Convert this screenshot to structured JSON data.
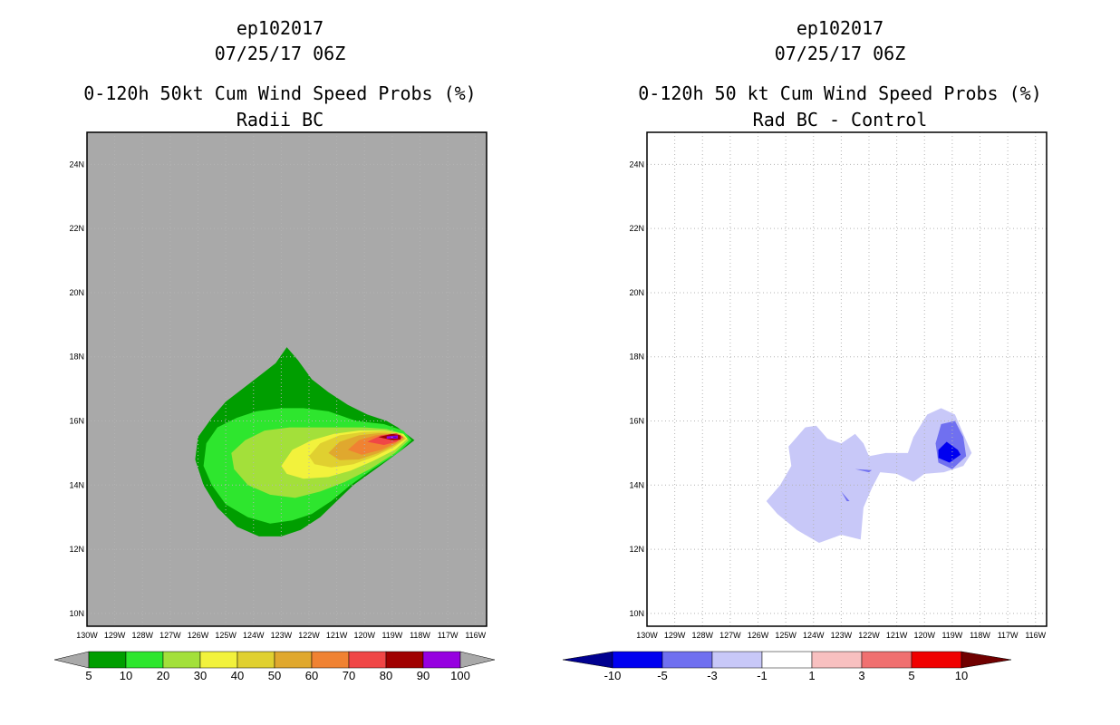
{
  "panels": [
    {
      "id": "left",
      "title_lines": [
        "ep102017",
        "07/25/17 06Z",
        "0-120h 50kt Cum Wind Speed Probs (%)",
        "Radii BC"
      ],
      "colors": {
        "background": "#a9a9a9"
      },
      "colorbar": {
        "bins": [
          {
            "from": 5,
            "to": 10,
            "color": "#009e00"
          },
          {
            "from": 10,
            "to": 20,
            "color": "#2ee62e"
          },
          {
            "from": 20,
            "to": 30,
            "color": "#a3e03a"
          },
          {
            "from": 30,
            "to": 40,
            "color": "#f2f23c"
          },
          {
            "from": 40,
            "to": 50,
            "color": "#e0d030"
          },
          {
            "from": 50,
            "to": 60,
            "color": "#e0a82e"
          },
          {
            "from": 60,
            "to": 70,
            "color": "#f08232"
          },
          {
            "from": 70,
            "to": 80,
            "color": "#f04646"
          },
          {
            "from": 80,
            "to": 90,
            "color": "#a00000"
          },
          {
            "from": 90,
            "to": 100,
            "color": "#9600e0"
          }
        ],
        "under_color": "#a9a9a9",
        "over_color": "#a9a9a9",
        "labels": [
          "5",
          "10",
          "20",
          "30",
          "40",
          "50",
          "60",
          "70",
          "80",
          "90",
          "100"
        ]
      }
    },
    {
      "id": "right",
      "title_lines": [
        "ep102017",
        "07/25/17 06Z",
        "0-120h 50 kt Cum Wind Speed Probs (%)",
        "Rad BC - Control"
      ],
      "colors": {
        "background": "#ffffff"
      },
      "colorbar": {
        "bins": [
          {
            "from": -10,
            "to": -5,
            "color": "#0000f0"
          },
          {
            "from": -5,
            "to": -3,
            "color": "#7070f0"
          },
          {
            "from": -3,
            "to": -1,
            "color": "#c8c8f8"
          },
          {
            "from": -1,
            "to": 1,
            "color": "#ffffff"
          },
          {
            "from": 1,
            "to": 3,
            "color": "#f8c0c0"
          },
          {
            "from": 3,
            "to": 5,
            "color": "#f07070"
          },
          {
            "from": 5,
            "to": 10,
            "color": "#f00000"
          }
        ],
        "under_color": "#000090",
        "over_color": "#700000",
        "labels": [
          "-10",
          "-5",
          "-3",
          "-1",
          "1",
          "3",
          "5",
          "10"
        ]
      }
    }
  ],
  "chart_data": [
    {
      "type": "heatmap",
      "title": "0-120h 50kt Cum Wind Speed Probs (%) Radii BC",
      "storm": "ep102017",
      "valid_time": "07/25/17 06Z",
      "units": "%",
      "x_range_lon": [
        -130.0,
        -115.6
      ],
      "y_range_lat": [
        9.6,
        25.0
      ],
      "x_tick_labels": [
        "130W",
        "129W",
        "128W",
        "127W",
        "126W",
        "125W",
        "124W",
        "123W",
        "122W",
        "121W",
        "120W",
        "119W",
        "118W",
        "117W",
        "116W"
      ],
      "y_tick_labels": [
        "10N",
        "12N",
        "14N",
        "16N",
        "18N",
        "20N",
        "22N",
        "24N"
      ],
      "grid": true,
      "contours": [
        {
          "level": 5,
          "color": "#009e00",
          "points": [
            [
              -122.8,
              18.3
            ],
            [
              -122.4,
              17.9
            ],
            [
              -121.9,
              17.3
            ],
            [
              -121.3,
              16.9
            ],
            [
              -120.6,
              16.5
            ],
            [
              -119.9,
              16.2
            ],
            [
              -119.2,
              16.0
            ],
            [
              -118.8,
              15.8
            ],
            [
              -118.2,
              15.4
            ],
            [
              -118.8,
              15.0
            ],
            [
              -119.6,
              14.5
            ],
            [
              -120.4,
              14.0
            ],
            [
              -121.0,
              13.5
            ],
            [
              -121.6,
              13.0
            ],
            [
              -122.3,
              12.6
            ],
            [
              -123.0,
              12.4
            ],
            [
              -123.8,
              12.4
            ],
            [
              -124.6,
              12.7
            ],
            [
              -125.3,
              13.3
            ],
            [
              -125.8,
              14.0
            ],
            [
              -126.1,
              14.8
            ],
            [
              -126.0,
              15.5
            ],
            [
              -125.5,
              16.1
            ],
            [
              -125.0,
              16.6
            ],
            [
              -124.4,
              17.0
            ],
            [
              -123.8,
              17.4
            ],
            [
              -123.2,
              17.8
            ]
          ]
        },
        {
          "level": 10,
          "color": "#2ee62e",
          "points": [
            [
              -125.7,
              15.3
            ],
            [
              -125.3,
              15.8
            ],
            [
              -124.6,
              16.1
            ],
            [
              -123.9,
              16.3
            ],
            [
              -123.0,
              16.4
            ],
            [
              -122.2,
              16.4
            ],
            [
              -121.3,
              16.3
            ],
            [
              -120.3,
              16.0
            ],
            [
              -119.3,
              15.9
            ],
            [
              -118.6,
              15.7
            ],
            [
              -118.3,
              15.4
            ],
            [
              -118.8,
              15.0
            ],
            [
              -119.7,
              14.5
            ],
            [
              -120.5,
              14.0
            ],
            [
              -121.2,
              13.5
            ],
            [
              -121.9,
              13.1
            ],
            [
              -122.6,
              12.9
            ],
            [
              -123.4,
              12.8
            ],
            [
              -124.2,
              13.0
            ],
            [
              -125.0,
              13.4
            ],
            [
              -125.5,
              14.0
            ],
            [
              -125.8,
              14.6
            ]
          ]
        },
        {
          "level": 20,
          "color": "#a3e03a",
          "points": [
            [
              -124.8,
              15.0
            ],
            [
              -124.3,
              15.4
            ],
            [
              -123.6,
              15.7
            ],
            [
              -122.7,
              15.8
            ],
            [
              -121.8,
              15.8
            ],
            [
              -120.9,
              15.8
            ],
            [
              -120.0,
              15.8
            ],
            [
              -119.2,
              15.75
            ],
            [
              -118.6,
              15.6
            ],
            [
              -118.4,
              15.4
            ],
            [
              -118.9,
              15.0
            ],
            [
              -119.8,
              14.5
            ],
            [
              -120.7,
              14.1
            ],
            [
              -121.6,
              13.8
            ],
            [
              -122.5,
              13.6
            ],
            [
              -123.4,
              13.7
            ],
            [
              -124.2,
              14.0
            ],
            [
              -124.7,
              14.5
            ]
          ]
        },
        {
          "level": 30,
          "color": "#f2f23c",
          "points": [
            [
              -123.0,
              14.6
            ],
            [
              -122.6,
              15.1
            ],
            [
              -121.9,
              15.4
            ],
            [
              -121.1,
              15.6
            ],
            [
              -120.2,
              15.7
            ],
            [
              -119.3,
              15.7
            ],
            [
              -118.6,
              15.6
            ],
            [
              -118.45,
              15.45
            ],
            [
              -118.9,
              15.1
            ],
            [
              -119.7,
              14.75
            ],
            [
              -120.5,
              14.45
            ],
            [
              -121.3,
              14.25
            ],
            [
              -122.2,
              14.2
            ],
            [
              -122.8,
              14.35
            ]
          ]
        },
        {
          "level": 40,
          "color": "#e0d030",
          "points": [
            [
              -122.0,
              14.9
            ],
            [
              -121.6,
              15.3
            ],
            [
              -120.9,
              15.55
            ],
            [
              -120.1,
              15.65
            ],
            [
              -119.3,
              15.68
            ],
            [
              -118.7,
              15.6
            ],
            [
              -118.5,
              15.45
            ],
            [
              -118.9,
              15.2
            ],
            [
              -119.6,
              14.9
            ],
            [
              -120.4,
              14.65
            ],
            [
              -121.2,
              14.55
            ],
            [
              -121.8,
              14.65
            ]
          ]
        },
        {
          "level": 50,
          "color": "#e0a82e",
          "points": [
            [
              -121.3,
              15.0
            ],
            [
              -120.9,
              15.35
            ],
            [
              -120.2,
              15.55
            ],
            [
              -119.5,
              15.62
            ],
            [
              -118.8,
              15.6
            ],
            [
              -118.55,
              15.45
            ],
            [
              -118.9,
              15.25
            ],
            [
              -119.5,
              15.0
            ],
            [
              -120.2,
              14.8
            ],
            [
              -120.9,
              14.78
            ]
          ]
        },
        {
          "level": 60,
          "color": "#f08232",
          "points": [
            [
              -120.6,
              15.1
            ],
            [
              -120.2,
              15.4
            ],
            [
              -119.6,
              15.55
            ],
            [
              -119.0,
              15.6
            ],
            [
              -118.6,
              15.5
            ],
            [
              -118.9,
              15.3
            ],
            [
              -119.4,
              15.1
            ],
            [
              -120.1,
              14.95
            ]
          ]
        },
        {
          "level": 70,
          "color": "#f04646",
          "points": [
            [
              -119.9,
              15.35
            ],
            [
              -119.4,
              15.55
            ],
            [
              -118.85,
              15.62
            ],
            [
              -118.6,
              15.5
            ],
            [
              -118.85,
              15.35
            ],
            [
              -119.3,
              15.25
            ]
          ]
        },
        {
          "level": 80,
          "color": "#a00000",
          "points": [
            [
              -119.5,
              15.5
            ],
            [
              -119.0,
              15.6
            ],
            [
              -118.7,
              15.55
            ],
            [
              -118.7,
              15.42
            ],
            [
              -119.0,
              15.4
            ]
          ]
        },
        {
          "level": 90,
          "color": "#9600e0",
          "points": [
            [
              -119.2,
              15.52
            ],
            [
              -118.8,
              15.55
            ],
            [
              -118.8,
              15.45
            ],
            [
              -119.2,
              15.45
            ]
          ]
        },
        {
          "level": 100,
          "color": "#5000c8",
          "points": [
            [
              -119.0,
              15.51
            ],
            [
              -118.85,
              15.51
            ],
            [
              -118.85,
              15.48
            ],
            [
              -119.0,
              15.48
            ]
          ]
        }
      ]
    },
    {
      "type": "heatmap",
      "title": "0-120h 50 kt Cum Wind Speed Probs (%) Rad BC - Control",
      "storm": "ep102017",
      "valid_time": "07/25/17 06Z",
      "units": "%",
      "x_range_lon": [
        -130.0,
        -115.6
      ],
      "y_range_lat": [
        9.6,
        25.0
      ],
      "x_tick_labels": [
        "130W",
        "129W",
        "128W",
        "127W",
        "126W",
        "125W",
        "124W",
        "123W",
        "122W",
        "121W",
        "120W",
        "119W",
        "118W",
        "117W",
        "116W"
      ],
      "y_tick_labels": [
        "10N",
        "12N",
        "14N",
        "16N",
        "18N",
        "20N",
        "22N",
        "24N"
      ],
      "grid": true,
      "contours": [
        {
          "level": -1,
          "color": "#c8c8f8",
          "points": [
            [
              -124.3,
              15.8
            ],
            [
              -123.9,
              15.85
            ],
            [
              -123.5,
              15.45
            ],
            [
              -123.0,
              15.3
            ],
            [
              -122.5,
              15.6
            ],
            [
              -122.2,
              15.3
            ],
            [
              -122.0,
              14.9
            ],
            [
              -121.4,
              15.0
            ],
            [
              -120.6,
              15.0
            ],
            [
              -120.4,
              15.5
            ],
            [
              -119.9,
              16.2
            ],
            [
              -119.4,
              16.4
            ],
            [
              -118.9,
              16.2
            ],
            [
              -118.6,
              15.6
            ],
            [
              -118.3,
              15.0
            ],
            [
              -118.6,
              14.6
            ],
            [
              -119.3,
              14.4
            ],
            [
              -120.0,
              14.35
            ],
            [
              -120.4,
              14.1
            ],
            [
              -121.0,
              14.35
            ],
            [
              -121.6,
              14.4
            ],
            [
              -121.9,
              13.9
            ],
            [
              -122.2,
              13.3
            ],
            [
              -122.3,
              12.3
            ],
            [
              -123.0,
              12.45
            ],
            [
              -123.8,
              12.2
            ],
            [
              -124.6,
              12.6
            ],
            [
              -125.3,
              13.1
            ],
            [
              -125.7,
              13.5
            ],
            [
              -125.2,
              14.0
            ],
            [
              -124.8,
              14.6
            ],
            [
              -124.9,
              15.2
            ]
          ]
        },
        {
          "level": -3,
          "color": "#7070f0",
          "points": [
            [
              -119.6,
              15.3
            ],
            [
              -119.4,
              15.9
            ],
            [
              -118.9,
              16.0
            ],
            [
              -118.6,
              15.5
            ],
            [
              -118.5,
              14.9
            ],
            [
              -119.0,
              14.5
            ],
            [
              -119.5,
              14.7
            ]
          ]
        },
        {
          "level": -3,
          "color": "#7070f0",
          "points": [
            [
              -123.0,
              13.8
            ],
            [
              -122.8,
              13.5
            ],
            [
              -122.7,
              13.5
            ]
          ]
        },
        {
          "level": -3,
          "color": "#7070f0",
          "points": [
            [
              -122.5,
              14.5
            ],
            [
              -121.9,
              14.47
            ],
            [
              -122.0,
              14.4
            ]
          ]
        },
        {
          "level": -5,
          "color": "#0000f0",
          "points": [
            [
              -119.5,
              15.1
            ],
            [
              -119.2,
              15.35
            ],
            [
              -118.8,
              15.1
            ],
            [
              -118.7,
              14.95
            ],
            [
              -119.1,
              14.7
            ],
            [
              -119.5,
              14.85
            ]
          ]
        }
      ]
    }
  ]
}
